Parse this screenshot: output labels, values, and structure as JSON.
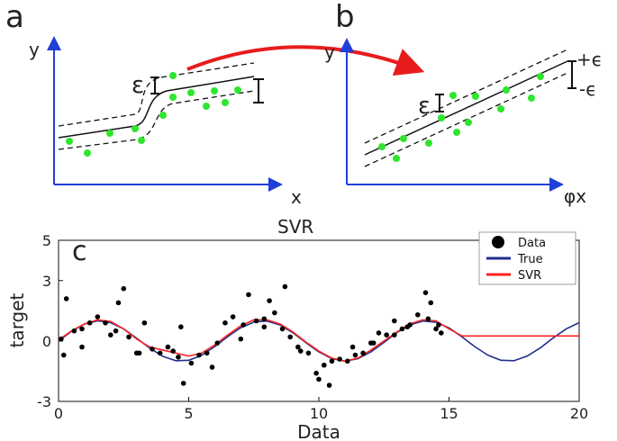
{
  "panel_a": {
    "letter": "a",
    "ylabel": "y",
    "xlabel": "x",
    "epsilon_label": "ε",
    "caption": "SVR"
  },
  "panel_b": {
    "letter": "b",
    "ylabel": "y",
    "xlabel": "φx",
    "epsilon_label": "ε",
    "plus_eps": "+ϵ",
    "minus_eps": "-ϵ"
  },
  "colors": {
    "axis": "#1f3fd8",
    "point_green": "#2ee62e",
    "arrow": "#e81c1c",
    "true_line": "#1f2f8c",
    "svr_line": "#ff2020",
    "data_point": "#000000"
  },
  "chart_data": {
    "type": "line",
    "panel_letter": "c",
    "xlabel": "Data",
    "ylabel": "target",
    "xlim": [
      0,
      20
    ],
    "ylim": [
      -3,
      5
    ],
    "xticks": [
      0,
      5,
      10,
      15,
      20
    ],
    "yticks": [
      -3,
      0,
      3,
      5
    ],
    "legend": {
      "position": "top-right",
      "entries": [
        "Data",
        "True",
        "SVR"
      ]
    },
    "series": [
      {
        "name": "True",
        "kind": "line",
        "x": [
          0,
          0.5,
          1,
          1.5,
          2,
          2.5,
          3,
          3.5,
          4,
          4.5,
          5,
          5.5,
          6,
          6.5,
          7,
          7.5,
          8,
          8.5,
          9,
          9.5,
          10,
          10.5,
          11,
          11.5,
          12,
          12.5,
          13,
          13.5,
          14,
          14.5,
          15,
          15.5,
          16,
          16.5,
          17,
          17.5,
          18,
          18.5,
          19,
          19.5,
          20
        ],
        "y": [
          0,
          0.48,
          0.84,
          1.0,
          0.91,
          0.6,
          0.14,
          -0.35,
          -0.76,
          -0.98,
          -0.96,
          -0.71,
          -0.28,
          0.22,
          0.66,
          0.94,
          0.99,
          0.8,
          0.41,
          -0.08,
          -0.54,
          -0.88,
          -1.0,
          -0.88,
          -0.54,
          -0.07,
          0.42,
          0.8,
          0.99,
          0.93,
          0.65,
          0.2,
          -0.29,
          -0.71,
          -0.96,
          -0.98,
          -0.75,
          -0.35,
          0.15,
          0.6,
          0.91
        ]
      },
      {
        "name": "SVR",
        "kind": "line",
        "x": [
          0,
          0.5,
          1,
          1.5,
          2,
          2.5,
          3,
          3.5,
          4,
          4.5,
          5,
          5.5,
          6,
          6.5,
          7,
          7.5,
          8,
          8.5,
          9,
          9.5,
          10,
          10.5,
          11,
          11.5,
          12,
          12.5,
          13,
          13.5,
          14,
          14.5,
          15,
          15.5,
          16,
          16.5,
          17,
          17.5,
          18,
          18.5,
          19,
          19.5,
          20
        ],
        "y": [
          0.05,
          0.5,
          0.85,
          1.05,
          0.97,
          0.6,
          0.1,
          -0.3,
          -0.45,
          -0.6,
          -0.75,
          -0.6,
          -0.2,
          0.3,
          0.75,
          1.05,
          1.05,
          0.85,
          0.45,
          -0.05,
          -0.5,
          -0.85,
          -1.0,
          -0.85,
          -0.45,
          0.0,
          0.45,
          0.85,
          1.05,
          1.0,
          0.6,
          0.25,
          0.25,
          0.25,
          0.25,
          0.25,
          0.25,
          0.25,
          0.25,
          0.25,
          0.25
        ]
      },
      {
        "name": "Data",
        "kind": "scatter",
        "x": [
          0.1,
          0.3,
          0.6,
          0.9,
          1.2,
          1.5,
          1.8,
          2.0,
          2.3,
          2.5,
          2.7,
          3.1,
          3.3,
          3.6,
          3.9,
          4.2,
          4.4,
          4.6,
          4.8,
          5.1,
          5.4,
          5.7,
          6.1,
          6.4,
          6.7,
          7.1,
          7.3,
          7.6,
          7.9,
          8.1,
          8.3,
          8.6,
          8.9,
          9.2,
          9.6,
          9.9,
          10.2,
          10.5,
          10.8,
          11.1,
          11.4,
          11.7,
          12.0,
          12.3,
          12.6,
          12.9,
          13.2,
          13.5,
          13.8,
          14.1,
          14.3,
          14.5,
          14.7,
          0.2,
          0.9,
          2.2,
          3.0,
          4.7,
          5.9,
          7.0,
          7.9,
          8.7,
          9.3,
          10.0,
          10.4,
          11.3,
          12.1,
          12.9,
          13.4,
          14.2,
          14.6
        ],
        "y": [
          0.1,
          2.1,
          0.5,
          0.6,
          0.9,
          1.2,
          0.9,
          0.3,
          1.9,
          2.6,
          0.2,
          -0.6,
          0.9,
          -0.4,
          -0.6,
          -0.3,
          -0.5,
          -0.8,
          -2.1,
          -1.1,
          -0.7,
          -0.6,
          -0.1,
          0.9,
          1.2,
          0.8,
          2.3,
          1.0,
          1.1,
          2.0,
          1.4,
          0.6,
          0.2,
          -0.3,
          -0.6,
          -1.6,
          -1.2,
          -1.0,
          -0.9,
          -1.0,
          -0.7,
          -0.6,
          -0.1,
          0.4,
          0.3,
          0.3,
          0.6,
          0.8,
          1.3,
          2.4,
          1.9,
          0.6,
          0.4,
          -0.7,
          -0.3,
          0.5,
          -0.6,
          0.7,
          -1.3,
          0.1,
          0.7,
          2.7,
          -0.5,
          -1.9,
          -2.2,
          -0.3,
          -0.1,
          1.0,
          0.7,
          1.1,
          0.8
        ]
      }
    ]
  }
}
